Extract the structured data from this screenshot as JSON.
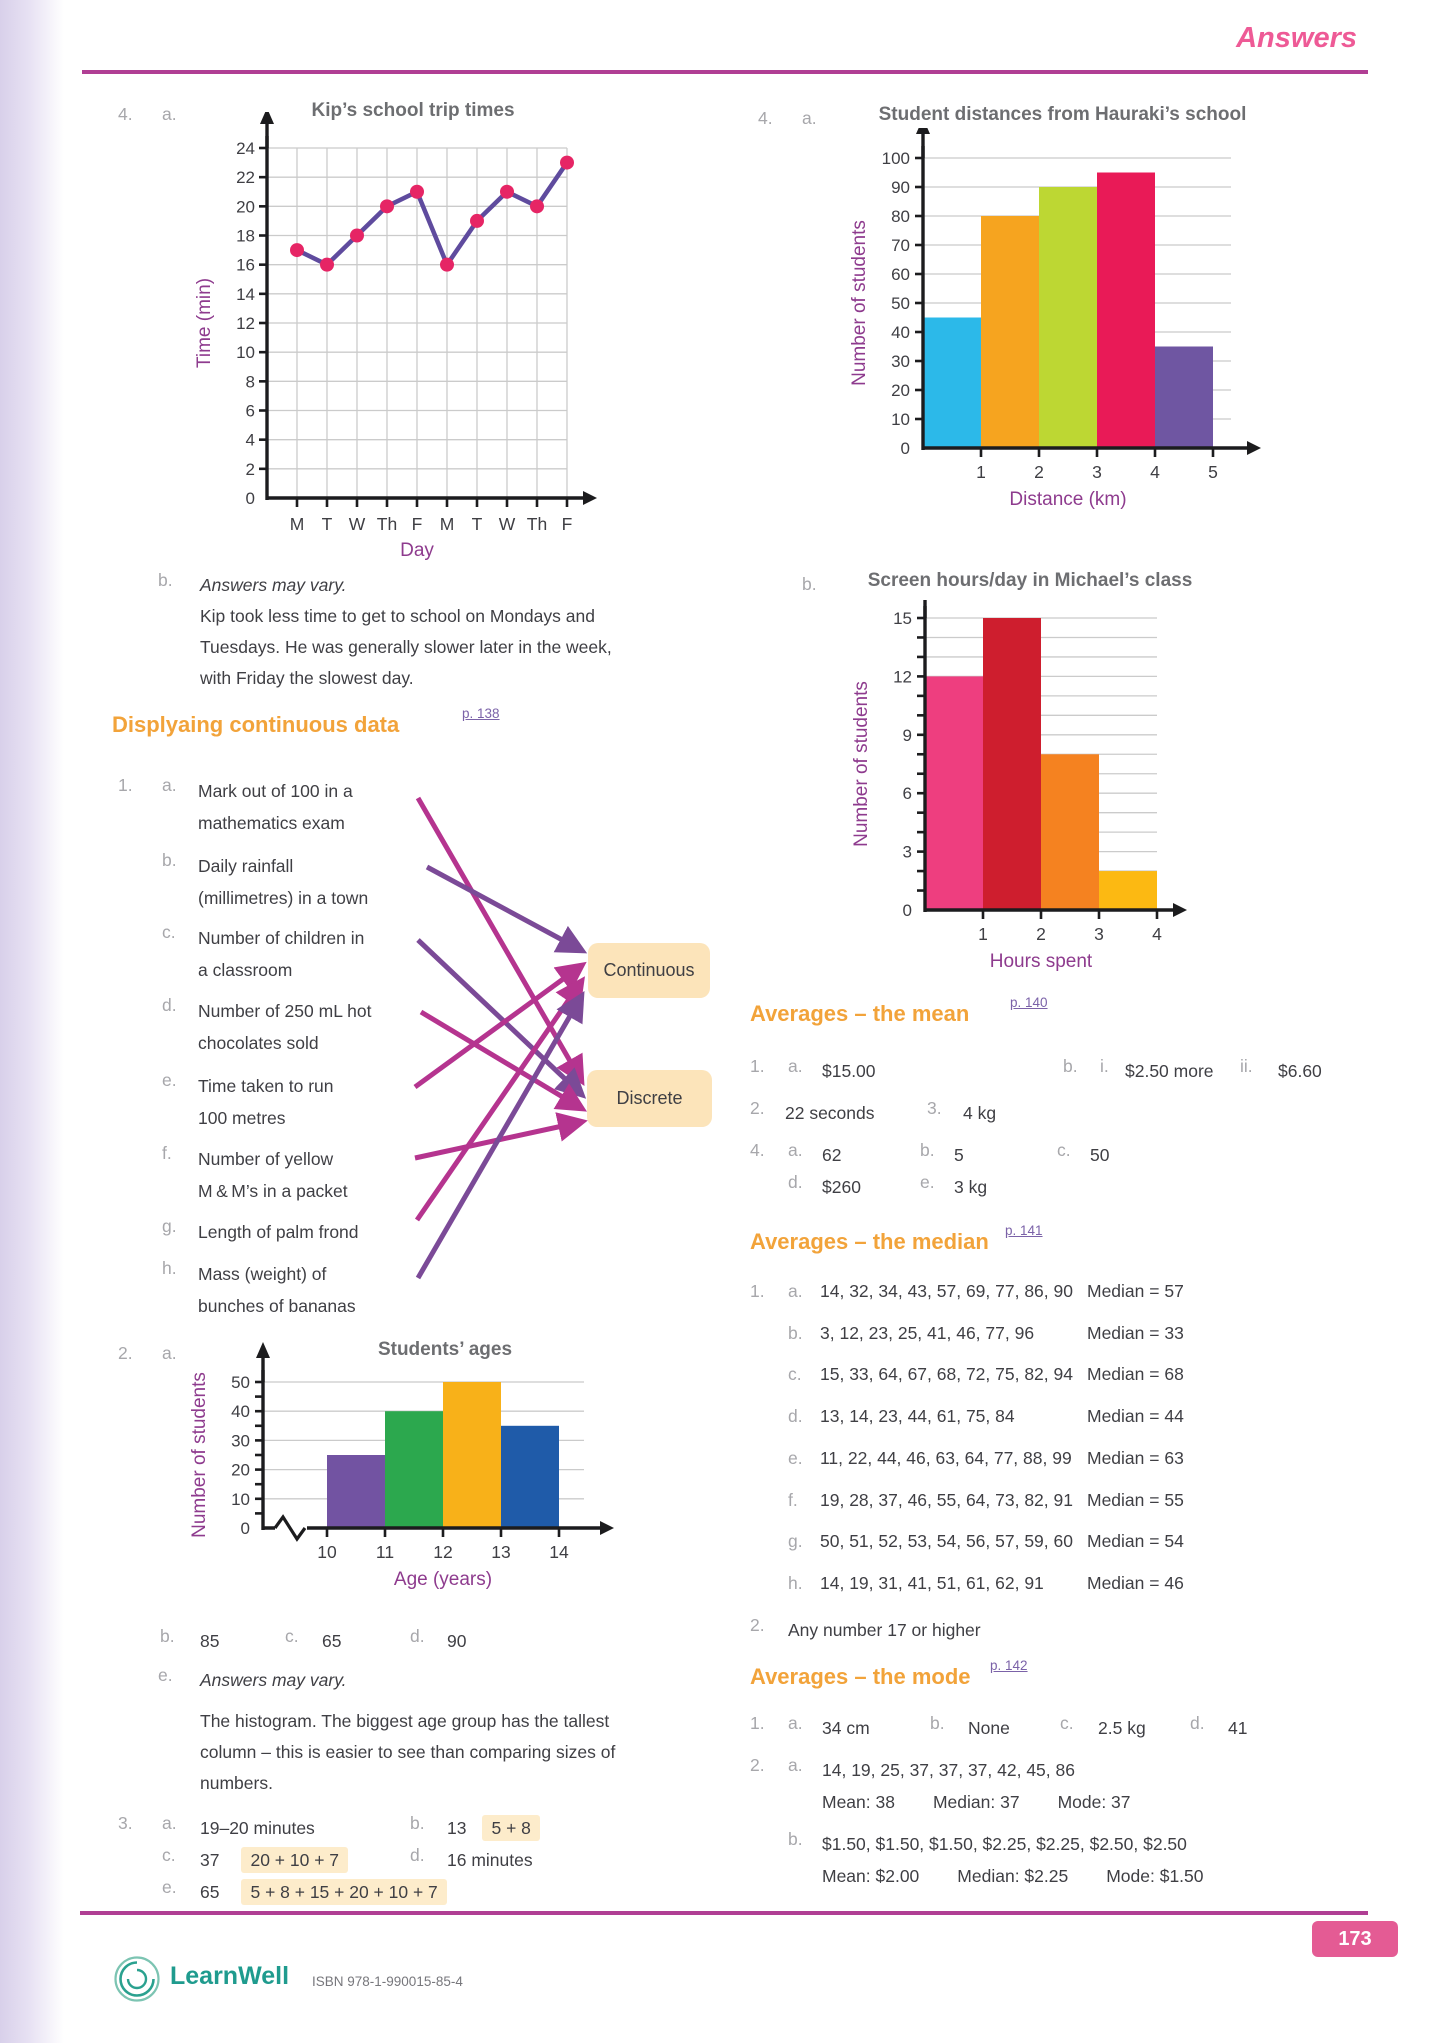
{
  "header": {
    "title": "Answers"
  },
  "footer": {
    "brand": "LearnWell",
    "isbn": "ISBN 978-1-990015-85-4",
    "page_number": "173"
  },
  "colors": {
    "heading_pink": "#ee5a96",
    "rule_magenta": "#b03e94",
    "section_orange": "#f2a33a",
    "link_purple": "#7b62a8",
    "marker_gray": "#a7a7ab",
    "body_text": "#3f3f44",
    "chart_title_gray": "#6d6e71",
    "axis_label_purple": "#8e3b8e",
    "grid_gray": "#cbcbcb",
    "arrow_magenta": "#b5348f",
    "arrow_purple": "#7b4a97",
    "match_box_bg": "#fce4ba",
    "highlight_bg": "#fdeccb",
    "brand_teal": "#1f9b8e",
    "badge_pink": "#e45b94"
  },
  "left": {
    "q4": {
      "num": "4.",
      "a": "a.",
      "b": "b.",
      "b_italic": "Answers may vary.",
      "b_lines": [
        "Kip took less time to get to school on Mondays and",
        "Tuesdays. He was generally slower later in the week,",
        "with Friday the slowest day."
      ]
    },
    "section": {
      "title": "Displyaing continuous data",
      "link": "p. 138"
    },
    "q1": {
      "num": "1.",
      "items": [
        {
          "id": "a",
          "letter": "a.",
          "lines": [
            "Mark out of 100 in a",
            "mathematics exam"
          ]
        },
        {
          "id": "b",
          "letter": "b.",
          "lines": [
            "Daily rainfall",
            "(millimetres) in a town"
          ]
        },
        {
          "id": "c",
          "letter": "c.",
          "lines": [
            "Number of children in",
            "a classroom"
          ]
        },
        {
          "id": "d",
          "letter": "d.",
          "lines": [
            "Number of 250 mL hot",
            "chocolates sold"
          ]
        },
        {
          "id": "e",
          "letter": "e.",
          "lines": [
            "Time taken to run",
            "100 metres"
          ]
        },
        {
          "id": "f",
          "letter": "f.",
          "lines": [
            "Number of yellow",
            "M & M’s in a packet"
          ]
        },
        {
          "id": "g",
          "letter": "g.",
          "lines": [
            "Length of palm frond"
          ]
        },
        {
          "id": "h",
          "letter": "h.",
          "lines": [
            "Mass (weight) of",
            "bunches of bananas"
          ]
        }
      ],
      "box_continuous": "Continuous",
      "box_discrete": "Discrete",
      "matches": [
        {
          "item": "a",
          "to": "discrete",
          "color": "magenta"
        },
        {
          "item": "b",
          "to": "continuous",
          "color": "purple"
        },
        {
          "item": "c",
          "to": "discrete",
          "color": "purple"
        },
        {
          "item": "d",
          "to": "discrete",
          "color": "magenta"
        },
        {
          "item": "e",
          "to": "continuous",
          "color": "magenta"
        },
        {
          "item": "f",
          "to": "discrete",
          "color": "magenta"
        },
        {
          "item": "g",
          "to": "continuous",
          "color": "magenta"
        },
        {
          "item": "h",
          "to": "continuous",
          "color": "purple"
        }
      ]
    },
    "q2": {
      "num": "2.",
      "a": "a.",
      "answers": [
        {
          "letter": "b.",
          "value": "85"
        },
        {
          "letter": "c.",
          "value": "65"
        },
        {
          "letter": "d.",
          "value": "90"
        }
      ],
      "e_letter": "e.",
      "e_italic": "Answers may vary.",
      "e_lines": [
        "The histogram. The biggest age group has the tallest",
        "column – this is easier to see than comparing sizes of",
        "numbers."
      ]
    },
    "q3": {
      "num": "3.",
      "r1": {
        "a": "a.",
        "a_v": "19–20 minutes",
        "b": "b.",
        "b_v": "13",
        "b_hl": "5 + 8"
      },
      "r2": {
        "c": "c.",
        "c_v": "37",
        "c_hl": "20 + 10 + 7",
        "d": "d.",
        "d_v": "16 minutes"
      },
      "r3": {
        "e": "e.",
        "e_v": "65",
        "e_hl": "5 + 8 + 15 + 20 + 10 + 7"
      }
    }
  },
  "right": {
    "q4": {
      "num": "4.",
      "a": "a.",
      "b": "b."
    },
    "mean": {
      "title": "Averages – the mean",
      "link": "p. 140",
      "r1": {
        "num": "1.",
        "a": "a.",
        "a_v": "$15.00",
        "b": "b.",
        "i": "i.",
        "i_v": "$2.50 more",
        "ii": "ii.",
        "ii_v": "$6.60"
      },
      "r2": {
        "num": "2.",
        "v": "22 seconds",
        "num3": "3.",
        "v3": "4 kg"
      },
      "r3": {
        "num": "4.",
        "a": "a.",
        "a_v": "62",
        "b": "b.",
        "b_v": "5",
        "c": "c.",
        "c_v": "50"
      },
      "r4": {
        "d": "d.",
        "d_v": "$260",
        "e": "e.",
        "e_v": "3 kg"
      }
    },
    "median": {
      "title": "Averages – the median",
      "link": "p. 141",
      "num": "1.",
      "rows": [
        {
          "letter": "a.",
          "list": "14, 32, 34, 43, 57, 69, 77, 86, 90",
          "median": "Median = 57"
        },
        {
          "letter": "b.",
          "list": "3, 12, 23, 25, 41, 46, 77, 96",
          "median": "Median = 33"
        },
        {
          "letter": "c.",
          "list": "15, 33, 64, 67, 68, 72, 75, 82, 94",
          "median": "Median = 68"
        },
        {
          "letter": "d.",
          "list": "13, 14, 23, 44, 61, 75, 84",
          "median": "Median = 44"
        },
        {
          "letter": "e.",
          "list": "11, 22, 44, 46, 63, 64, 77, 88, 99",
          "median": "Median = 63"
        },
        {
          "letter": "f.",
          "list": "19, 28, 37, 46, 55, 64, 73, 82, 91",
          "median": "Median = 55"
        },
        {
          "letter": "g.",
          "list": "50, 51, 52, 53, 54, 56, 57, 59, 60",
          "median": "Median = 54"
        },
        {
          "letter": "h.",
          "list": "14, 19, 31, 41, 51, 61, 62, 91",
          "median": "Median = 46"
        }
      ],
      "q2_num": "2.",
      "q2_text": "Any number 17 or higher"
    },
    "mode": {
      "title": "Averages – the mode",
      "link": "p. 142",
      "r1": {
        "num": "1.",
        "a": "a.",
        "a_v": "34 cm",
        "b": "b.",
        "b_v": "None",
        "c": "c.",
        "c_v": "2.5 kg",
        "d": "d.",
        "d_v": "41"
      },
      "r2": {
        "num": "2.",
        "a": "a.",
        "list": "14, 19, 25, 37, 37, 37, 42, 45, 86"
      },
      "r2_stats": [
        "Mean: 38",
        "Median: 37",
        "Mode: 37"
      ],
      "r3": {
        "b": "b.",
        "list": "$1.50, $1.50, $1.50, $2.25, $2.25, $2.50, $2.50"
      },
      "r3_stats": [
        "Mean: $2.00",
        "Median: $2.25",
        "Mode: $1.50"
      ]
    }
  },
  "chart_data": [
    {
      "id": "kip_times",
      "type": "line",
      "title": "Kip’s school trip times",
      "xlabel": "Day",
      "ylabel": "Time (min)",
      "categories": [
        "M",
        "T",
        "W",
        "Th",
        "F",
        "M",
        "T",
        "W",
        "Th",
        "F"
      ],
      "values": [
        17,
        16,
        18,
        20,
        21,
        16,
        19,
        21,
        20,
        23
      ],
      "ylim": [
        0,
        24
      ],
      "ytick_step": 2,
      "grid": "both",
      "line_color": "#5f4b9e",
      "point_color": "#e62565"
    },
    {
      "id": "distances",
      "type": "bar",
      "title": "Student distances from Hauraki’s school",
      "xlabel": "Distance (km)",
      "ylabel": "Number of students",
      "bin_edges": [
        0,
        1,
        2,
        3,
        4,
        5
      ],
      "values": [
        45,
        80,
        90,
        95,
        35
      ],
      "bar_colors": [
        "#2cb9e9",
        "#f6a41f",
        "#bdd733",
        "#e91a57",
        "#6f56a2"
      ],
      "ylim": [
        0,
        100
      ],
      "ylabel_step": 10,
      "ytick_step": 10,
      "grid_step": 10
    },
    {
      "id": "screen_hours",
      "type": "bar",
      "title": "Screen hours/day in Michael’s class",
      "xlabel": "Hours spent",
      "ylabel": "Number of students",
      "bin_edges": [
        0,
        1,
        2,
        3,
        4
      ],
      "values": [
        12,
        15,
        8,
        2
      ],
      "bar_colors": [
        "#ee3e7f",
        "#ce1e2e",
        "#f58220",
        "#fcb912"
      ],
      "ylim": [
        0,
        15
      ],
      "ylabel_step": 3,
      "ytick_step": 1,
      "grid_step": 1
    },
    {
      "id": "students_ages",
      "type": "bar",
      "title": "Students’ ages",
      "xlabel": "Age (years)",
      "ylabel": "Number of students",
      "bin_edges": [
        10,
        11,
        12,
        13,
        14
      ],
      "values": [
        25,
        40,
        50,
        35
      ],
      "bar_colors": [
        "#7253a2",
        "#2ca84e",
        "#f8b119",
        "#1f5ba9"
      ],
      "ylim": [
        0,
        50
      ],
      "ylabel_step": 10,
      "ytick_step": 5,
      "grid_step": 10,
      "axis_break": true
    }
  ]
}
